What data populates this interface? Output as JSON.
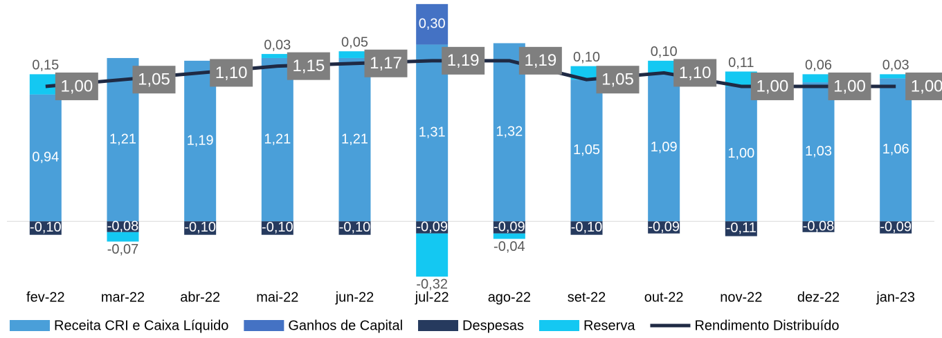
{
  "chart_data": {
    "type": "bar",
    "categories": [
      "fev-22",
      "mar-22",
      "abr-22",
      "mai-22",
      "jun-22",
      "jul-22",
      "ago-22",
      "set-22",
      "out-22",
      "nov-22",
      "dez-22",
      "jan-23"
    ],
    "ylim": [
      -0.46,
      1.64
    ],
    "series": [
      {
        "name": "Receita CRI e Caixa Líquido",
        "color": "#4a9fd9",
        "values": [
          0.94,
          1.21,
          1.19,
          1.21,
          1.21,
          1.31,
          1.32,
          1.05,
          1.09,
          1.0,
          1.03,
          1.06
        ],
        "value_labels": [
          "0,94",
          "1,21",
          "1,19",
          "1,21",
          "1,21",
          "1,31",
          "1,32",
          "1,05",
          "1,09",
          "1,00",
          "1,03",
          "1,06"
        ]
      },
      {
        "name": "Ganhos de Capital",
        "color": "#4472c4",
        "values": [
          null,
          null,
          null,
          null,
          null,
          0.3,
          null,
          null,
          null,
          null,
          null,
          null
        ],
        "value_labels": [
          null,
          null,
          null,
          null,
          null,
          "0,30",
          null,
          null,
          null,
          null,
          null,
          null
        ]
      },
      {
        "name": "Despesas",
        "color": "#263a5e",
        "values": [
          -0.1,
          -0.08,
          -0.1,
          -0.1,
          -0.1,
          -0.09,
          -0.09,
          -0.1,
          -0.09,
          -0.11,
          -0.08,
          -0.09
        ],
        "value_labels": [
          "-0,10",
          "-0,08",
          "-0,10",
          "-0,10",
          "-0,10",
          "-0,09",
          "-0,09",
          "-0,10",
          "-0,09",
          "-0,11",
          "-0,08",
          "-0,09"
        ]
      },
      {
        "name": "Reserva",
        "color": "#14c8f2",
        "values": [
          0.15,
          -0.07,
          null,
          0.03,
          0.05,
          -0.32,
          -0.04,
          0.1,
          0.1,
          0.11,
          0.06,
          0.03
        ],
        "value_labels": [
          "0,15",
          "-0,07",
          null,
          "0,03",
          "0,05",
          "-0,32",
          "-0,04",
          "0,10",
          "0,10",
          "0,11",
          "0,06",
          "0,03"
        ]
      },
      {
        "name": "Rendimento Distribuído",
        "color": "#1f2a44",
        "type": "line",
        "values": [
          1.0,
          1.05,
          1.1,
          1.15,
          1.17,
          1.19,
          1.19,
          1.05,
          1.1,
          1.0,
          1.0,
          1.0
        ],
        "value_labels": [
          "1,00",
          "1,05",
          "1,10",
          "1,15",
          "1,17",
          "1,19",
          "1,19",
          "1,05",
          "1,10",
          "1,00",
          "1,00",
          "1,00"
        ]
      }
    ]
  }
}
